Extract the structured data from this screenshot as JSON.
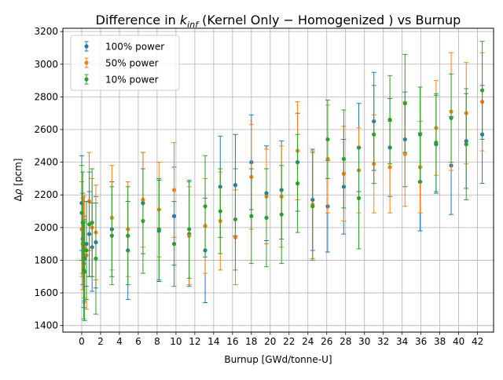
{
  "chart_data": {
    "type": "scatter",
    "title_prefix": "Difference in ",
    "title_k": "k",
    "title_sub": "inf",
    "title_suffix": " (Kernel Only − Homogenized ) vs Burnup",
    "xlabel": "Burnup [GWd/tonne-U]",
    "ylabel_delta": "Δ",
    "ylabel_rho": "ρ",
    "ylabel_unit": " [pcm]",
    "xlim": [
      -2.0,
      43.7
    ],
    "ylim": [
      1360,
      3220
    ],
    "xticks": [
      0,
      2,
      4,
      6,
      8,
      10,
      12,
      14,
      16,
      18,
      20,
      22,
      24,
      26,
      28,
      30,
      32,
      34,
      36,
      38,
      40,
      42
    ],
    "yticks": [
      1400,
      1600,
      1800,
      2000,
      2200,
      2400,
      2600,
      2800,
      3000,
      3200
    ],
    "grid": true,
    "legend_position": "upper-left",
    "series": [
      {
        "name": "100% power",
        "color": "#1f77b4",
        "x": [
          0.0,
          0.1,
          0.2,
          0.3,
          0.5,
          0.8,
          1.1,
          1.5,
          3.2,
          4.9,
          6.5,
          8.2,
          9.8,
          11.4,
          13.1,
          14.7,
          16.3,
          18.0,
          19.6,
          21.2,
          22.9,
          24.5,
          26.1,
          27.8,
          29.4,
          31.0,
          32.7,
          34.3,
          35.9,
          37.6,
          39.2,
          40.8,
          42.5
        ],
        "y": [
          2150,
          1930,
          1780,
          1810,
          1900,
          1960,
          1880,
          1910,
          1990,
          1860,
          2150,
          1980,
          2070,
          1960,
          1860,
          2250,
          2260,
          2400,
          2210,
          2230,
          2400,
          2170,
          2130,
          2250,
          2490,
          2650,
          2490,
          2540,
          2280,
          2510,
          2380,
          2530,
          2570
        ],
        "err": [
          290,
          280,
          270,
          260,
          260,
          260,
          270,
          280,
          290,
          300,
          310,
          310,
          300,
          320,
          320,
          310,
          310,
          290,
          290,
          300,
          300,
          310,
          280,
          290,
          270,
          300,
          300,
          290,
          300,
          300,
          300,
          290,
          300
        ]
      },
      {
        "name": "50% power",
        "color": "#ff7f0e",
        "x": [
          0.0,
          0.1,
          0.2,
          0.3,
          0.5,
          0.8,
          1.1,
          1.5,
          3.2,
          4.9,
          6.5,
          8.2,
          9.8,
          11.4,
          13.1,
          14.7,
          16.3,
          18.0,
          19.6,
          21.2,
          22.9,
          24.5,
          26.1,
          27.8,
          29.4,
          31.0,
          32.7,
          34.3,
          35.9,
          37.6,
          39.2,
          40.8,
          42.5
        ],
        "y": [
          1990,
          1900,
          1880,
          1870,
          1830,
          2160,
          2000,
          1970,
          2060,
          1990,
          2170,
          2110,
          2230,
          1950,
          2010,
          2040,
          1940,
          2310,
          2190,
          2190,
          2470,
          2140,
          2420,
          2330,
          2350,
          2390,
          2370,
          2450,
          2370,
          2610,
          2710,
          2700,
          2770
        ],
        "err": [
          290,
          280,
          310,
          330,
          330,
          300,
          300,
          290,
          320,
          290,
          290,
          290,
          290,
          300,
          290,
          300,
          290,
          320,
          290,
          310,
          300,
          330,
          330,
          290,
          260,
          300,
          280,
          320,
          280,
          290,
          360,
          310,
          300
        ]
      },
      {
        "name": "10% power",
        "color": "#2ca02c",
        "x": [
          0.0,
          0.1,
          0.2,
          0.3,
          0.5,
          0.8,
          1.1,
          1.5,
          3.2,
          4.9,
          6.5,
          8.2,
          9.8,
          11.4,
          13.1,
          14.7,
          16.3,
          18.0,
          19.6,
          21.2,
          22.9,
          24.5,
          26.1,
          27.8,
          29.4,
          31.0,
          32.7,
          34.3,
          35.9,
          37.6,
          39.2,
          40.8,
          42.5
        ],
        "y": [
          2090,
          2030,
          1740,
          1730,
          1860,
          2020,
          2030,
          1810,
          1950,
          1950,
          2040,
          1990,
          1900,
          1990,
          2130,
          2100,
          2050,
          2070,
          2060,
          2080,
          2270,
          2130,
          2540,
          2420,
          2180,
          2570,
          2660,
          2760,
          2570,
          2520,
          2670,
          2510,
          2840
        ],
        "err": [
          290,
          310,
          300,
          300,
          300,
          320,
          330,
          340,
          300,
          300,
          320,
          310,
          260,
          300,
          310,
          260,
          310,
          290,
          300,
          300,
          300,
          330,
          240,
          300,
          310,
          300,
          270,
          300,
          290,
          300,
          270,
          340,
          300
        ]
      }
    ]
  }
}
